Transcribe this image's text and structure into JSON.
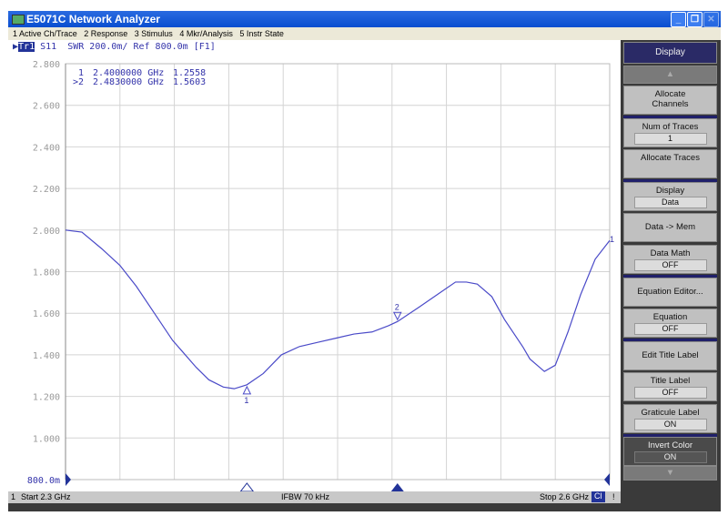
{
  "window": {
    "title": "E5071C Network Analyzer",
    "buttons": [
      "minimize",
      "restore",
      "close"
    ]
  },
  "menu": [
    "1 Active Ch/Trace",
    "2 Response",
    "3 Stimulus",
    "4 Mkr/Analysis",
    "5 Instr State"
  ],
  "trace_header": {
    "trace": "Tr1",
    "text": "S11  SWR 200.0m/ Ref 800.0m [F1]"
  },
  "markers_table": [
    {
      "label": " 1",
      "freq": "2.4000000 GHz",
      "value": "1.2558"
    },
    {
      "label": ">2",
      "freq": "2.4830000 GHz",
      "value": "1.5603"
    }
  ],
  "status": {
    "channel": "1",
    "start": "Start 2.3 GHz",
    "ifbw": "IFBW 70 kHz",
    "stop": "Stop 2.6 GHz",
    "cal": "Cl",
    "flag": "!"
  },
  "softkeys": {
    "title": "Display",
    "items": [
      {
        "label": "Allocate Channels",
        "value": null
      },
      {
        "label": "Num of Traces",
        "value": "1"
      },
      {
        "label": "Allocate Traces",
        "value": null
      },
      {
        "label": "Display",
        "value": "Data"
      },
      {
        "label": "Data -> Mem",
        "value": null
      },
      {
        "label": "Data Math",
        "value": "OFF"
      },
      {
        "label": "Equation Editor...",
        "value": null
      },
      {
        "label": "Equation",
        "value": "OFF"
      },
      {
        "label": "Edit Title Label",
        "value": null
      },
      {
        "label": "Title Label",
        "value": "OFF"
      },
      {
        "label": "Graticule Label",
        "value": "ON"
      },
      {
        "label": "Invert Color",
        "value": "ON"
      }
    ]
  },
  "chart_data": {
    "type": "line",
    "xlim": [
      2.3,
      2.6
    ],
    "ylim": [
      0.8,
      2.8
    ],
    "y_ticks": [
      "2.800",
      "2.600",
      "2.400",
      "2.200",
      "2.000",
      "1.800",
      "1.600",
      "1.400",
      "1.200",
      "1.000",
      "800.0m"
    ],
    "grid": true,
    "trace_color": "#4a4ac8",
    "series": [
      {
        "x": [
          2.3,
          2.309,
          2.32,
          2.33,
          2.339,
          2.349,
          2.359,
          2.364,
          2.372,
          2.379,
          2.387,
          2.393,
          2.4,
          2.409,
          2.419,
          2.429,
          2.439,
          2.449,
          2.459,
          2.469,
          2.478,
          2.483,
          2.495,
          2.505,
          2.515,
          2.521,
          2.527,
          2.535,
          2.542,
          2.552,
          2.556,
          2.564,
          2.57,
          2.577,
          2.584,
          2.592,
          2.6
        ],
        "y": [
          2.0,
          1.99,
          1.91,
          1.83,
          1.73,
          1.6,
          1.47,
          1.42,
          1.34,
          1.28,
          1.245,
          1.237,
          1.256,
          1.31,
          1.4,
          1.44,
          1.46,
          1.48,
          1.5,
          1.51,
          1.54,
          1.56,
          1.63,
          1.69,
          1.75,
          1.75,
          1.74,
          1.68,
          1.57,
          1.44,
          1.38,
          1.32,
          1.35,
          1.51,
          1.69,
          1.86,
          1.95
        ]
      }
    ],
    "markers": [
      {
        "label": "1",
        "x": 2.4,
        "y": 1.2558,
        "active": false
      },
      {
        "label": "2",
        "x": 2.483,
        "y": 1.5603,
        "active": true
      }
    ],
    "trace_end_label": "1"
  }
}
